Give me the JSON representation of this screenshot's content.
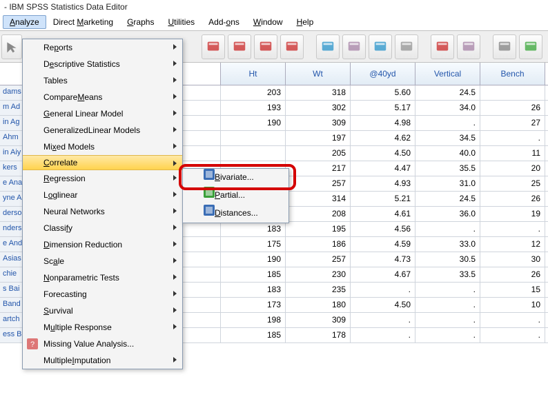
{
  "title": "- IBM SPSS Statistics Data Editor",
  "menubar": [
    {
      "l": "Analyze",
      "u": 0,
      "on": true
    },
    {
      "l": "Direct Marketing",
      "u": 7
    },
    {
      "l": "Graphs",
      "u": 0
    },
    {
      "l": "Utilities",
      "u": 0
    },
    {
      "l": "Add-ons",
      "u": 4
    },
    {
      "l": "Window",
      "u": 0
    },
    {
      "l": "Help",
      "u": 0
    }
  ],
  "menu": [
    {
      "l": "Reports",
      "u": 2,
      "arr": true
    },
    {
      "l": "Descriptive Statistics",
      "u": 1,
      "arr": true
    },
    {
      "l": "Tables",
      "u": null,
      "arr": true
    },
    {
      "l": "Compare Means",
      "u": 8,
      "arr": true
    },
    {
      "l": "General Linear Model",
      "u": 0,
      "arr": true
    },
    {
      "l": "Generalized Linear Models",
      "u": 11,
      "arr": true
    },
    {
      "l": "Mixed Models",
      "u": 2,
      "arr": true
    },
    {
      "l": "Correlate",
      "u": 0,
      "arr": true,
      "on": true
    },
    {
      "l": "Regression",
      "u": 0,
      "arr": true
    },
    {
      "l": "Loglinear",
      "u": 1,
      "arr": true
    },
    {
      "l": "Neural Networks",
      "u": null,
      "arr": true
    },
    {
      "l": "Classify",
      "u": 6,
      "arr": true
    },
    {
      "l": "Dimension Reduction",
      "u": 0,
      "arr": true
    },
    {
      "l": "Scale",
      "u": 2,
      "arr": true
    },
    {
      "l": "Nonparametric Tests",
      "u": 0,
      "arr": true
    },
    {
      "l": "Forecasting",
      "u": null,
      "arr": true
    },
    {
      "l": "Survival",
      "u": 0,
      "arr": true
    },
    {
      "l": "Multiple Response",
      "u": 1,
      "arr": true
    },
    {
      "l": "Missing Value Analysis...",
      "u": null,
      "icon": true
    },
    {
      "l": "Multiple Imputation",
      "u": 9,
      "arr": true
    }
  ],
  "submenu": [
    {
      "l": "Bivariate...",
      "u": 0,
      "c": "#3a6db5"
    },
    {
      "l": "Partial...",
      "u": 0,
      "c": "#3aa03a"
    },
    {
      "l": "Distances...",
      "u": 0,
      "c": "#3a6db5"
    }
  ],
  "cols": [
    "Ht",
    "Wt",
    "@40yd",
    "Vertical",
    "Bench"
  ],
  "rowlabels": [
    "dams",
    "m Ad",
    "in Ag",
    "Ahm",
    "in Aiy",
    "kers",
    "e Ana",
    "yne A",
    "derso",
    "nders",
    "e And",
    "Asias",
    "chie",
    "s Bai",
    "Band",
    "artch",
    "ess B"
  ],
  "data": [
    [
      "203",
      "318",
      "5.60",
      "24.5",
      ""
    ],
    [
      "193",
      "302",
      "5.17",
      "34.0",
      "26"
    ],
    [
      "190",
      "309",
      "4.98",
      ".",
      "27"
    ],
    [
      "",
      "197",
      "4.62",
      "34.5",
      "."
    ],
    [
      "",
      "205",
      "4.50",
      "40.0",
      "11"
    ],
    [
      "",
      "217",
      "4.47",
      "35.5",
      "20"
    ],
    [
      "",
      "257",
      "4.93",
      "31.0",
      "25"
    ],
    [
      "188",
      "314",
      "5.21",
      "24.5",
      "26"
    ],
    [
      "178",
      "208",
      "4.61",
      "36.0",
      "19"
    ],
    [
      "183",
      "195",
      "4.56",
      ".",
      "."
    ],
    [
      "175",
      "186",
      "4.59",
      "33.0",
      "12"
    ],
    [
      "190",
      "257",
      "4.73",
      "30.5",
      "30"
    ],
    [
      "185",
      "230",
      "4.67",
      "33.5",
      "26"
    ],
    [
      "183",
      "235",
      ".",
      ".",
      "15"
    ],
    [
      "173",
      "180",
      "4.50",
      ".",
      "10"
    ],
    [
      "198",
      "309",
      ".",
      ".",
      "."
    ],
    [
      "185",
      "178",
      ".",
      ".",
      "."
    ]
  ],
  "colors": {
    "menuHL": "#ffd34e",
    "red": "#d40000",
    "headerText": "#2255aa"
  }
}
